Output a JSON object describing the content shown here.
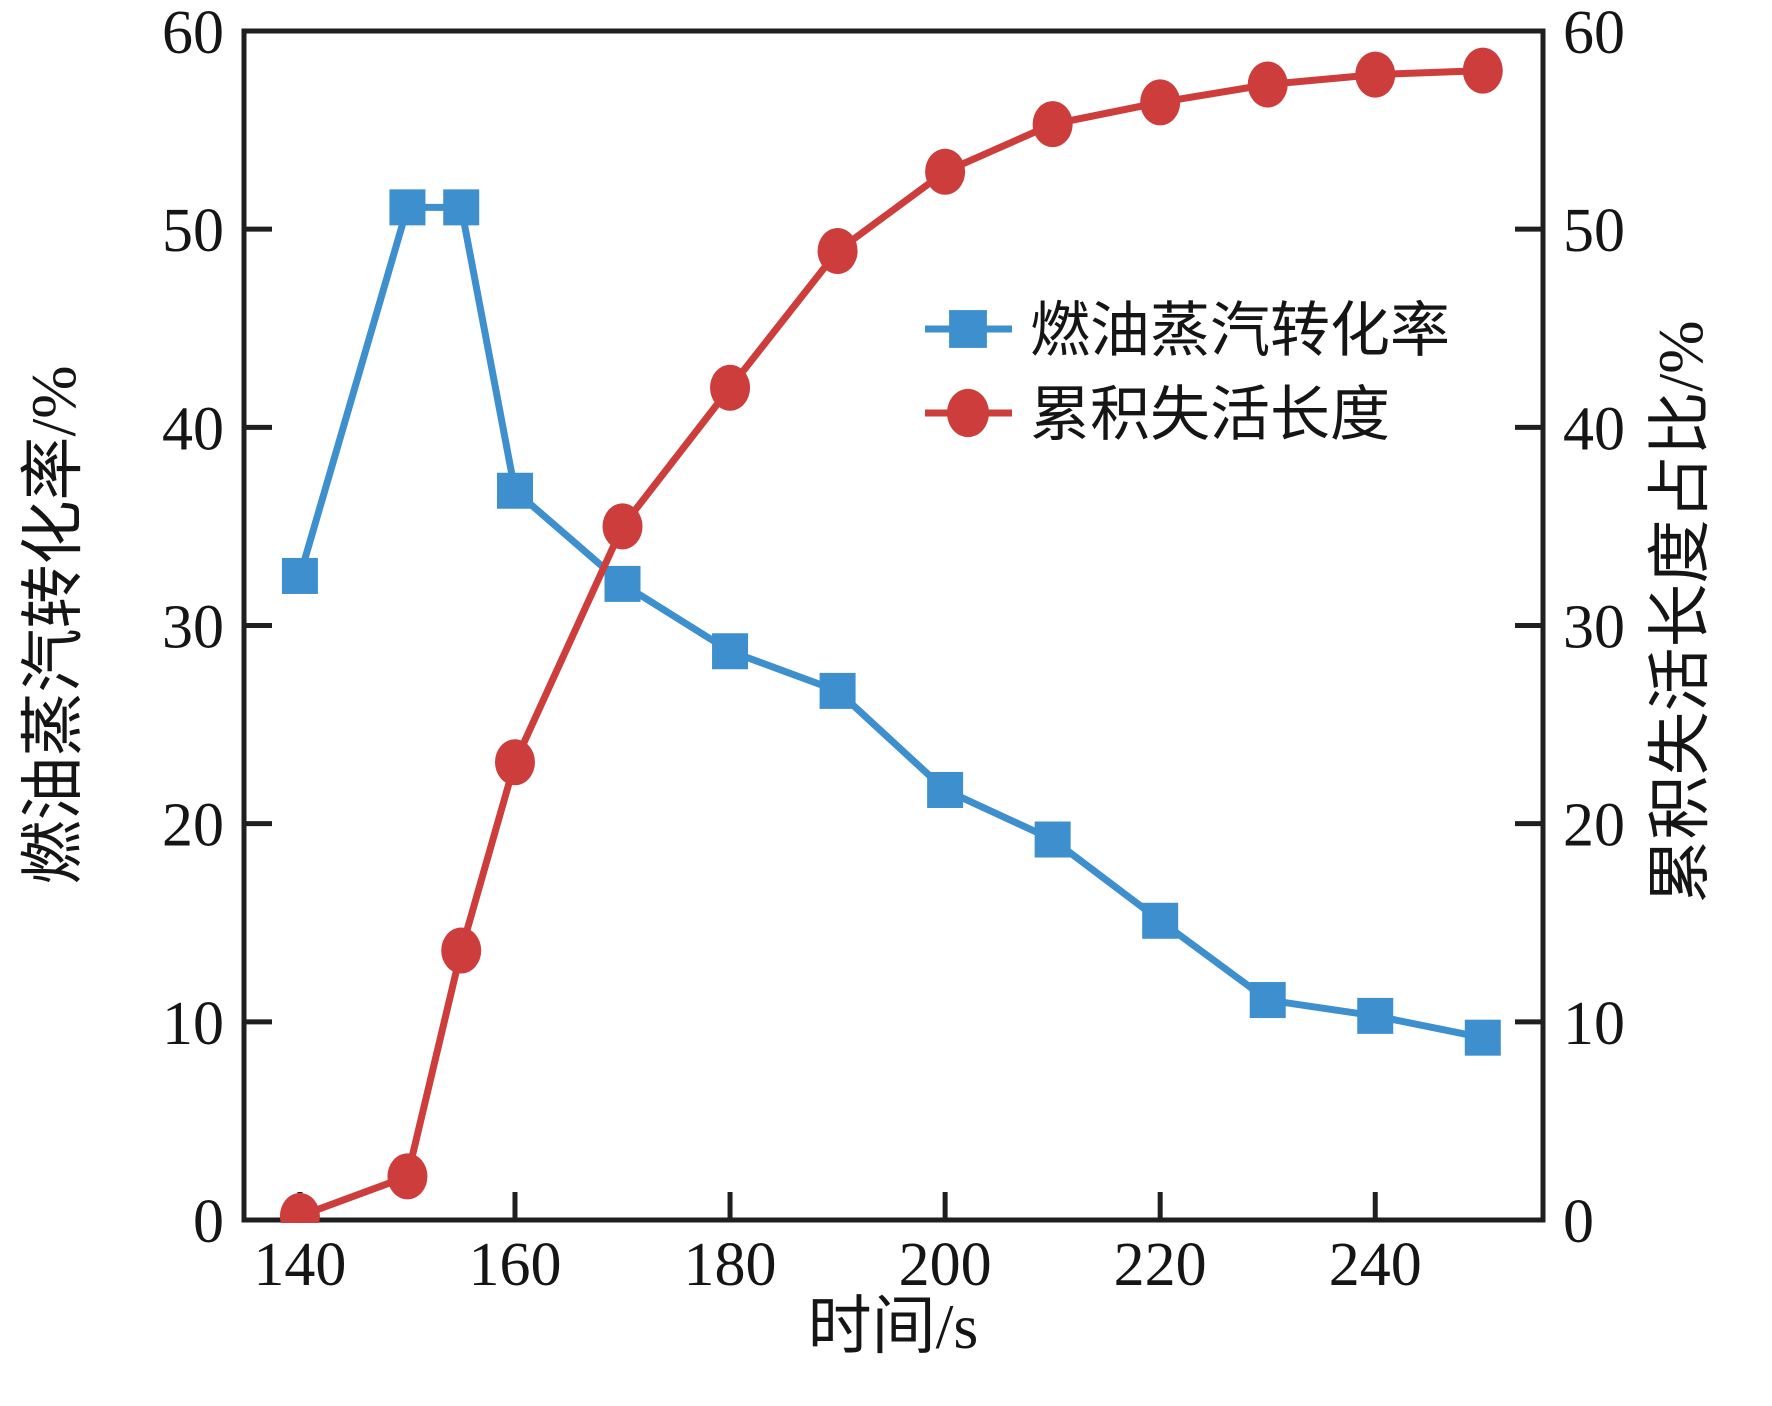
{
  "chart_data": {
    "type": "line",
    "title": "",
    "xlabel": "时间/s",
    "ylabel_left": "燃油蒸汽转化率/%",
    "ylabel_right": "累积失活长度占比/%",
    "xlim": [
      134.8,
      255.6
    ],
    "ylim_left": [
      0,
      60
    ],
    "ylim_right": [
      0,
      60
    ],
    "x_ticks": [
      140,
      160,
      180,
      200,
      220,
      240
    ],
    "y_ticks_left": [
      0,
      10,
      20,
      30,
      40,
      50,
      60
    ],
    "y_ticks_right": [
      0,
      10,
      20,
      30,
      40,
      50,
      60
    ],
    "grid": false,
    "legend_position": "inside upper-right area, no frame",
    "series": [
      {
        "key": "fuel-vapor-conversion",
        "name": "燃油蒸汽转化率",
        "axis": "left",
        "marker": "square",
        "color": "#3E8FCD",
        "x": [
          140,
          150,
          155,
          160,
          170,
          180,
          190,
          200,
          210,
          220,
          230,
          240,
          250
        ],
        "y": [
          32.5,
          51.1,
          51.1,
          36.8,
          32.1,
          28.7,
          26.7,
          21.7,
          19.2,
          15.1,
          11.1,
          10.3,
          9.2
        ]
      },
      {
        "key": "cumulative-deactivation-length",
        "name": "累积失活长度",
        "axis": "right",
        "marker": "circle",
        "color": "#CC3D3B",
        "x": [
          140,
          150,
          155,
          160,
          170,
          180,
          190,
          200,
          210,
          220,
          230,
          240,
          250
        ],
        "y": [
          0.2,
          2.2,
          13.6,
          23.1,
          35.0,
          42.0,
          48.9,
          52.9,
          55.3,
          56.4,
          57.3,
          57.8,
          58.0
        ]
      }
    ],
    "colors": {
      "blue_series": "#3E8FCD",
      "red_series": "#CC3D3B",
      "axis": "#1F1F1F",
      "text": "#151515"
    }
  }
}
